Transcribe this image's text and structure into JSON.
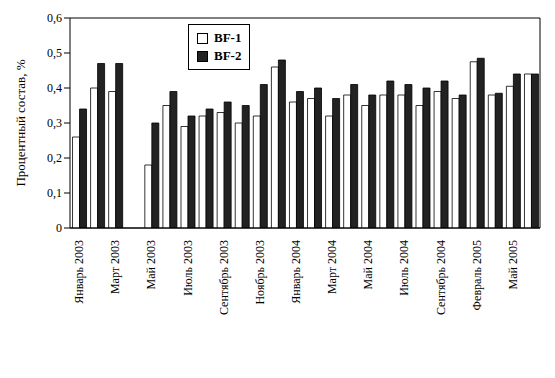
{
  "chart_data": {
    "type": "bar",
    "y_label": "Процентный состав, %",
    "categories": [
      "Январь 2003",
      null,
      "Март 2003",
      null,
      "Май 2003",
      null,
      "Июль 2003",
      null,
      "Сентябрь 2003",
      null,
      "Ноябрь 2003",
      null,
      "Январь 2004",
      null,
      "Март 2004",
      null,
      "Май 2004",
      null,
      "Июль 2004",
      null,
      "Сентябрь 2004",
      null,
      "Февраль 2005",
      null,
      "Май 2005",
      null
    ],
    "series": [
      {
        "name": "BF-1",
        "color": "#ffffff",
        "values": [
          0.26,
          0.4,
          0.39,
          null,
          0.18,
          0.35,
          0.29,
          0.32,
          0.33,
          0.3,
          0.32,
          0.46,
          0.36,
          0.37,
          0.32,
          0.38,
          0.35,
          0.38,
          0.38,
          0.35,
          0.39,
          0.37,
          0.475,
          0.38,
          0.405,
          0.44
        ]
      },
      {
        "name": "BF-2",
        "color": "#222222",
        "values": [
          0.34,
          0.47,
          0.47,
          null,
          0.3,
          0.39,
          0.32,
          0.34,
          0.36,
          0.35,
          0.41,
          0.48,
          0.39,
          0.4,
          0.37,
          0.41,
          0.38,
          0.42,
          0.41,
          0.4,
          0.42,
          0.38,
          0.485,
          0.385,
          0.44,
          0.44
        ]
      }
    ],
    "ylim": [
      0,
      0.6
    ],
    "yticks": [
      0,
      {
        "value": 0.1,
        "label": "0,1"
      },
      {
        "value": 0.2,
        "label": "0,2"
      },
      {
        "value": 0.3,
        "label": "0,3"
      },
      {
        "value": 0.4,
        "label": "0,4"
      },
      {
        "value": 0.5,
        "label": "0,5"
      },
      {
        "value": 0.6,
        "label": "0,6"
      }
    ],
    "grid": true,
    "legend": "upper left"
  }
}
